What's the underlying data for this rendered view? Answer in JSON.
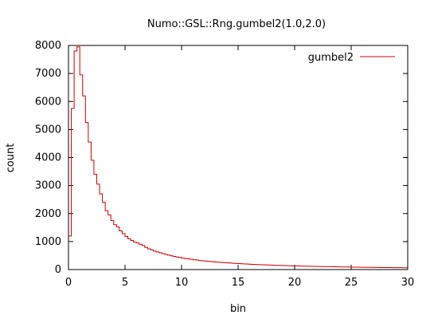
{
  "chart_data": {
    "type": "line",
    "title": "Numo::GSL::Rng.gumbel2(1.0,2.0)",
    "xlabel": "bin",
    "ylabel": "count",
    "xlim": [
      0,
      30
    ],
    "ylim": [
      0,
      8000
    ],
    "xticks": [
      "0",
      "5",
      "10",
      "15",
      "20",
      "25",
      "30"
    ],
    "yticks": [
      "0",
      "1000",
      "2000",
      "3000",
      "4000",
      "5000",
      "6000",
      "7000",
      "8000"
    ],
    "grid": false,
    "legend_position": "top-right",
    "bin_width": 0.25,
    "series": [
      {
        "name": "gumbel2",
        "color": "#cc0000",
        "style": "step",
        "x": [
          0,
          0.25,
          0.5,
          0.75,
          1,
          1.25,
          1.5,
          1.75,
          2,
          2.25,
          2.5,
          2.75,
          3,
          3.25,
          3.5,
          3.75,
          4,
          4.25,
          4.5,
          4.75,
          5,
          5.25,
          5.5,
          5.75,
          6,
          6.25,
          6.5,
          6.75,
          7,
          7.25,
          7.5,
          7.75,
          8,
          8.25,
          8.5,
          8.75,
          9,
          9.25,
          9.5,
          9.75,
          10,
          10.25,
          10.5,
          10.75,
          11,
          11.25,
          11.5,
          11.75,
          12,
          12.25,
          12.5,
          12.75,
          13,
          13.25,
          13.5,
          13.75,
          14,
          14.25,
          14.5,
          14.75,
          15,
          15.25,
          15.5,
          15.75,
          16,
          16.25,
          16.5,
          16.75,
          17,
          17.25,
          17.5,
          17.75,
          18,
          18.25,
          18.5,
          18.75,
          19,
          19.25,
          19.5,
          19.75,
          20,
          20.25,
          20.5,
          20.75,
          21,
          21.25,
          21.5,
          21.75,
          22,
          22.25,
          22.5,
          22.75,
          23,
          23.25,
          23.5,
          23.75,
          24,
          24.25,
          24.5,
          24.75,
          25,
          25.25,
          25.5,
          25.75,
          26,
          26.25,
          26.5,
          26.75,
          27,
          27.25,
          27.5,
          27.75,
          28,
          28.25,
          28.5,
          28.75,
          29,
          29.25,
          29.5,
          29.75
        ],
        "values": [
          1200,
          5750,
          7800,
          7950,
          6950,
          6200,
          5250,
          4550,
          3900,
          3400,
          3050,
          2700,
          2400,
          2100,
          1950,
          1750,
          1600,
          1520,
          1380,
          1280,
          1180,
          1100,
          1040,
          980,
          950,
          900,
          860,
          790,
          740,
          700,
          660,
          630,
          600,
          570,
          540,
          515,
          490,
          470,
          450,
          430,
          410,
          395,
          380,
          365,
          350,
          340,
          325,
          315,
          305,
          295,
          285,
          275,
          268,
          260,
          252,
          245,
          238,
          230,
          224,
          218,
          212,
          206,
          200,
          195,
          190,
          185,
          180,
          175,
          171,
          167,
          163,
          159,
          155,
          151,
          148,
          145,
          142,
          139,
          136,
          133,
          130,
          127,
          125,
          122,
          120,
          117,
          115,
          113,
          111,
          108,
          106,
          104,
          102,
          100,
          98,
          96,
          94,
          92,
          91,
          89,
          87,
          86,
          84,
          83,
          81,
          80,
          78,
          77,
          76,
          74,
          73,
          72,
          71,
          70,
          69,
          68,
          67,
          66,
          65,
          64
        ]
      }
    ]
  }
}
